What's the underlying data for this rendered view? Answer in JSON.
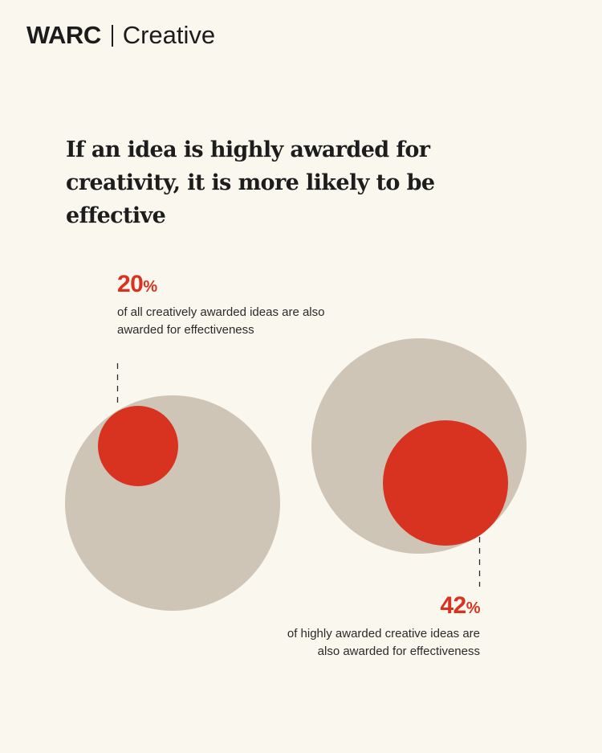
{
  "brand": {
    "name": "WARC",
    "section": "Creative"
  },
  "headline": "If an idea is highly awarded for creativity, it is more likely to be effective",
  "colors": {
    "background": "#faf7ef",
    "outer_circle": "#cfc5b6",
    "inner_circle": "#d83220",
    "accent_text": "#d83220",
    "text": "#1f1f1f"
  },
  "chart_data": {
    "type": "proportional-area-circles",
    "title": "If an idea is highly awarded for creativity, it is more likely to be effective",
    "series": [
      {
        "value": 20,
        "unit": "%",
        "label": "of all creatively awarded ideas are also awarded for effectiveness"
      },
      {
        "value": 42,
        "unit": "%",
        "label": "of highly awarded creative ideas are also awarded for effectiveness"
      }
    ]
  }
}
